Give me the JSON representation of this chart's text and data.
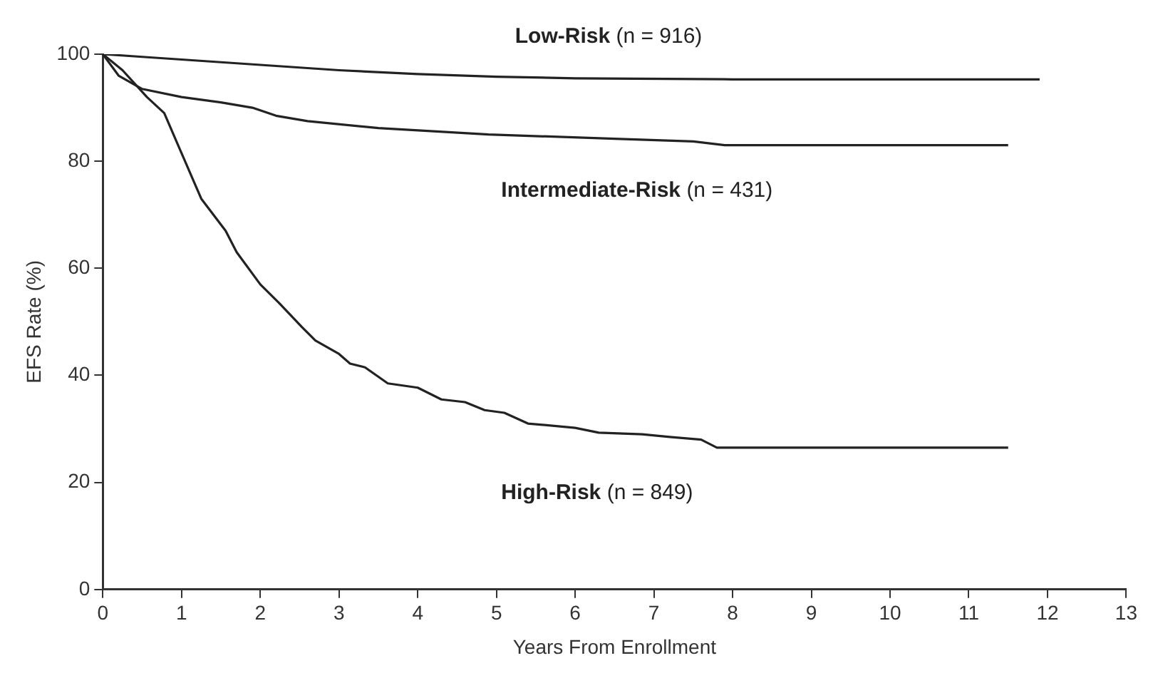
{
  "chart_data": {
    "type": "line",
    "xlabel": "Years From Enrollment",
    "ylabel": "EFS Rate (%)",
    "xlim": [
      0,
      13
    ],
    "xticks": [
      0,
      1,
      2,
      3,
      4,
      5,
      6,
      7,
      8,
      9,
      10,
      11,
      12,
      13
    ],
    "ylim": [
      0,
      100
    ],
    "yticks": [
      0,
      20,
      40,
      60,
      80,
      100
    ],
    "grid": false,
    "legend": false,
    "marker": "none",
    "line_style": "solid",
    "series": [
      {
        "name": "Low-Risk (n = 916)",
        "color": "#222222",
        "x": [
          0,
          0.5,
          1,
          2,
          3,
          4,
          5,
          6,
          8,
          10,
          11.9
        ],
        "values": [
          100,
          99.5,
          99,
          98,
          97,
          96.3,
          95.8,
          95.5,
          95.3,
          95.3,
          95.3
        ]
      },
      {
        "name": "Intermediate-Risk (n = 431)",
        "color": "#222222",
        "x": [
          0,
          0.2,
          0.5,
          1,
          1.5,
          1.9,
          2.2,
          2.6,
          3.5,
          4.9,
          6.5,
          7.5,
          7.9,
          11.5
        ],
        "values": [
          100,
          96,
          93.5,
          92,
          91,
          90,
          88.5,
          87.5,
          86.2,
          85,
          84.2,
          83.7,
          83,
          83
        ]
      },
      {
        "name": "High-Risk (n = 849)",
        "color": "#222222",
        "x": [
          0,
          0.25,
          0.56,
          0.78,
          1,
          1.25,
          1.56,
          1.7,
          2,
          2.24,
          2.53,
          2.7,
          3,
          3.14,
          3.33,
          3.62,
          4,
          4.3,
          4.6,
          4.85,
          5.1,
          5.4,
          6,
          6.3,
          6.85,
          7.2,
          7.6,
          7.8,
          11.5
        ],
        "values": [
          100,
          97,
          92,
          89,
          81.5,
          73,
          67,
          63,
          57,
          53.5,
          49,
          46.5,
          44,
          42.2,
          41.5,
          38.5,
          37.7,
          35.5,
          35,
          33.5,
          33,
          31,
          30.2,
          29.3,
          29,
          28.5,
          28,
          26.5,
          26.5
        ]
      }
    ]
  }
}
